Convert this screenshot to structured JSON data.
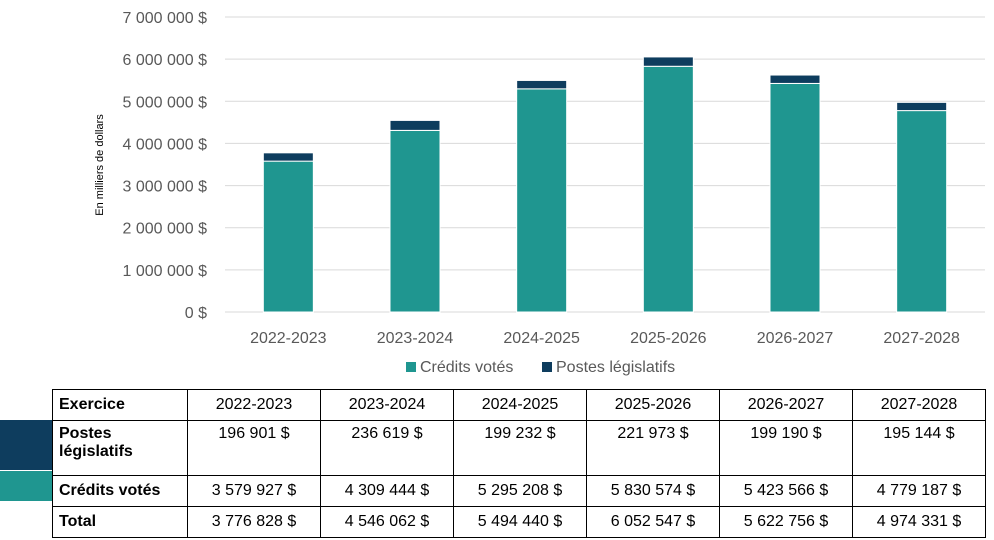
{
  "chart_data": {
    "type": "bar",
    "stacked": true,
    "categories": [
      "2022-2023",
      "2023-2024",
      "2024-2025",
      "2025-2026",
      "2026-2027",
      "2027-2028"
    ],
    "series": [
      {
        "name": "Crédits votés",
        "values": [
          3579927,
          4309444,
          5295208,
          5830574,
          5423566,
          4779187
        ],
        "color": "#1f9690"
      },
      {
        "name": "Postes législatifs",
        "values": [
          196901,
          236619,
          199232,
          221973,
          199190,
          195144
        ],
        "color": "#0e3d5e"
      }
    ],
    "ylabel": "En milliers de dollars",
    "ylim": [
      0,
      7000000
    ],
    "yticks": [
      0,
      1000000,
      2000000,
      3000000,
      4000000,
      5000000,
      6000000,
      7000000
    ],
    "ytick_labels": [
      "0 $",
      "1 000 000 $",
      "2 000 000 $",
      "3 000 000 $",
      "4 000 000 $",
      "5 000 000 $",
      "6 000 000 $",
      "7 000 000 $"
    ],
    "grid": true,
    "legend_position": "bottom"
  },
  "table": {
    "header": {
      "label": "Exercice",
      "cells": [
        "2022-2023",
        "2023-2024",
        "2024-2025",
        "2025-2026",
        "2026-2027",
        "2027-2028"
      ]
    },
    "rows": [
      {
        "label": "Postes législatifs",
        "cells": [
          "196 901 $",
          "236 619 $",
          "199 232 $",
          "221 973 $",
          "199 190 $",
          "195 144 $"
        ],
        "color": "#0e3d5e"
      },
      {
        "label": "Crédits votés",
        "cells": [
          "3 579 927 $",
          "4 309 444 $",
          "5 295 208 $",
          "5 830 574 $",
          "5 423 566 $",
          "4 779 187 $"
        ],
        "color": "#1f9690"
      },
      {
        "label": "Total",
        "cells": [
          "3 776 828 $",
          "4 546 062 $",
          "5 494 440 $",
          "6 052 547 $",
          "5 622 756 $",
          "4 974 331 $"
        ]
      }
    ]
  }
}
